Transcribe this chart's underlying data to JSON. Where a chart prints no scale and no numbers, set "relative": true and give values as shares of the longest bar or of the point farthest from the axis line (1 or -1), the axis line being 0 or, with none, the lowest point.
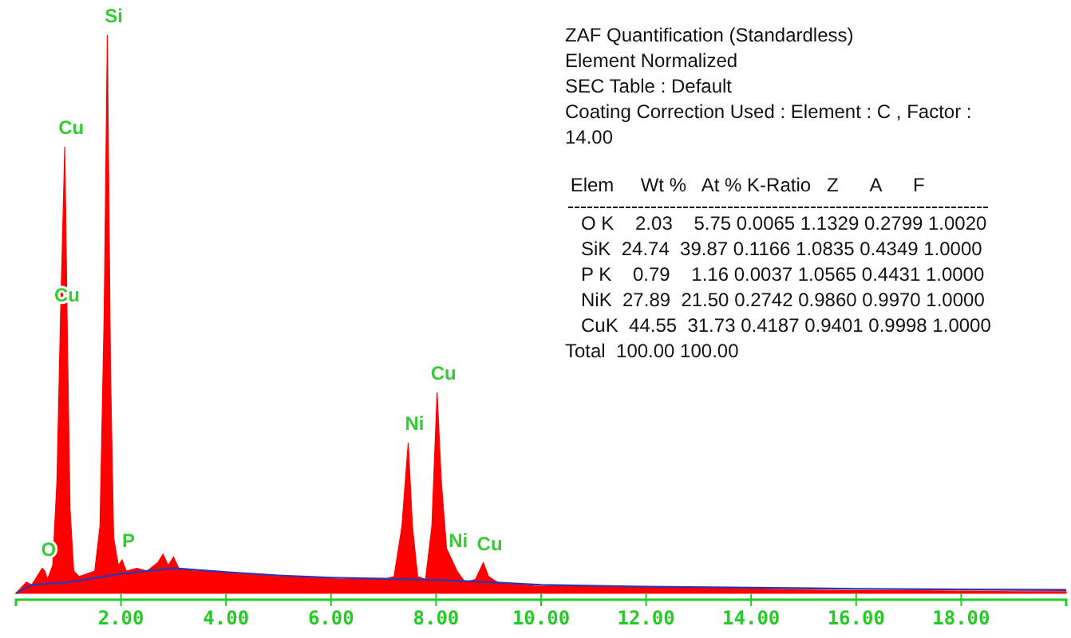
{
  "chart_data": {
    "type": "area",
    "relative": true,
    "xlim": [
      0,
      20
    ],
    "xticks": [
      {
        "value": 2,
        "label": "2.00"
      },
      {
        "value": 4,
        "label": "4.00"
      },
      {
        "value": 6,
        "label": "6.00"
      },
      {
        "value": 8,
        "label": "8.00"
      },
      {
        "value": 10,
        "label": "10.00"
      },
      {
        "value": 12,
        "label": "12.00"
      },
      {
        "value": 14,
        "label": "14.00"
      },
      {
        "value": 16,
        "label": "16.00"
      },
      {
        "value": 18,
        "label": "18.00"
      }
    ],
    "series": [
      {
        "color": "#ff0000",
        "x": [
          0,
          0.1,
          0.2,
          0.3,
          0.4,
          0.5,
          0.55,
          0.6,
          0.7,
          0.78,
          0.85,
          0.93,
          0.98,
          1.03,
          1.1,
          1.2,
          1.35,
          1.5,
          1.6,
          1.68,
          1.74,
          1.8,
          1.86,
          1.95,
          2.02,
          2.1,
          2.3,
          2.5,
          2.7,
          2.8,
          2.9,
          3.0,
          3.1,
          3.4,
          3.8,
          4.2,
          4.6,
          5.0,
          5.4,
          5.8,
          6.2,
          6.6,
          7.0,
          7.2,
          7.35,
          7.47,
          7.55,
          7.65,
          7.8,
          7.92,
          8.02,
          8.1,
          8.2,
          8.3,
          8.4,
          8.55,
          8.75,
          8.9,
          9.0,
          9.2,
          9.6,
          10,
          11,
          12,
          13,
          14,
          15,
          16,
          17,
          18,
          19,
          20
        ],
        "values": [
          0,
          0.01,
          0.02,
          0.015,
          0.03,
          0.045,
          0.04,
          0.025,
          0.05,
          0.2,
          0.5,
          0.8,
          0.45,
          0.15,
          0.04,
          0.03,
          0.035,
          0.04,
          0.12,
          0.5,
          1,
          0.4,
          0.1,
          0.05,
          0.06,
          0.04,
          0.045,
          0.04,
          0.055,
          0.07,
          0.05,
          0.065,
          0.045,
          0.04,
          0.04,
          0.035,
          0.033,
          0.03,
          0.03,
          0.028,
          0.025,
          0.025,
          0.025,
          0.03,
          0.12,
          0.27,
          0.12,
          0.03,
          0.025,
          0.12,
          0.36,
          0.2,
          0.08,
          0.06,
          0.04,
          0.02,
          0.025,
          0.055,
          0.03,
          0.018,
          0.015,
          0.012,
          0.012,
          0.012,
          0.01,
          0.008,
          0.006,
          0.005,
          0.005,
          0.004,
          0.003,
          0.003
        ]
      },
      {
        "type": "line",
        "color": "#3333aa",
        "x": [
          0,
          0.3,
          1,
          2,
          3,
          4,
          5,
          6,
          7,
          8,
          9,
          10,
          12,
          14,
          16,
          18,
          20
        ],
        "values": [
          0,
          0.015,
          0.02,
          0.035,
          0.045,
          0.038,
          0.032,
          0.028,
          0.026,
          0.024,
          0.02,
          0.015,
          0.012,
          0.01,
          0.008,
          0.007,
          0.006
        ]
      }
    ],
    "annotations": [
      {
        "text": "Cu",
        "x": 0.93,
        "y": 0.8
      },
      {
        "text": "Si",
        "x": 1.74,
        "y": 1
      },
      {
        "text": "Cu",
        "x": 0.85,
        "y": 0.5
      },
      {
        "text": "O",
        "x": 0.5,
        "y": 0.045
      },
      {
        "text": "P",
        "x": 2.02,
        "y": 0.06
      },
      {
        "text": "Ni",
        "x": 7.47,
        "y": 0.27
      },
      {
        "text": "Cu",
        "x": 8.02,
        "y": 0.36
      },
      {
        "text": "Ni",
        "x": 8.3,
        "y": 0.06
      },
      {
        "text": "Cu",
        "x": 8.9,
        "y": 0.055
      },
      "ZAF Quantification (Standardless)",
      "Element Normalized",
      "SEC Table : Default",
      "Coating Correction Used : Element : C , Factor :",
      "14.00",
      " Elem     Wt %   At % K-Ratio   Z      A      F",
      "   O K    2.03    5.75 0.0065 1.1329 0.2799 1.0020",
      "   SiK  24.74  39.87 0.1166 1.0835 0.4349 1.0000",
      "   P K    0.79    1.16 0.0037 1.0565 0.4431 1.0000",
      "   NiK  27.89  21.50 0.2742 0.9860 0.9970 1.0000",
      "   CuK  44.55  31.73 0.4187 0.9401 0.9998 1.0000",
      "Total  100.00 100.00"
    ]
  }
}
